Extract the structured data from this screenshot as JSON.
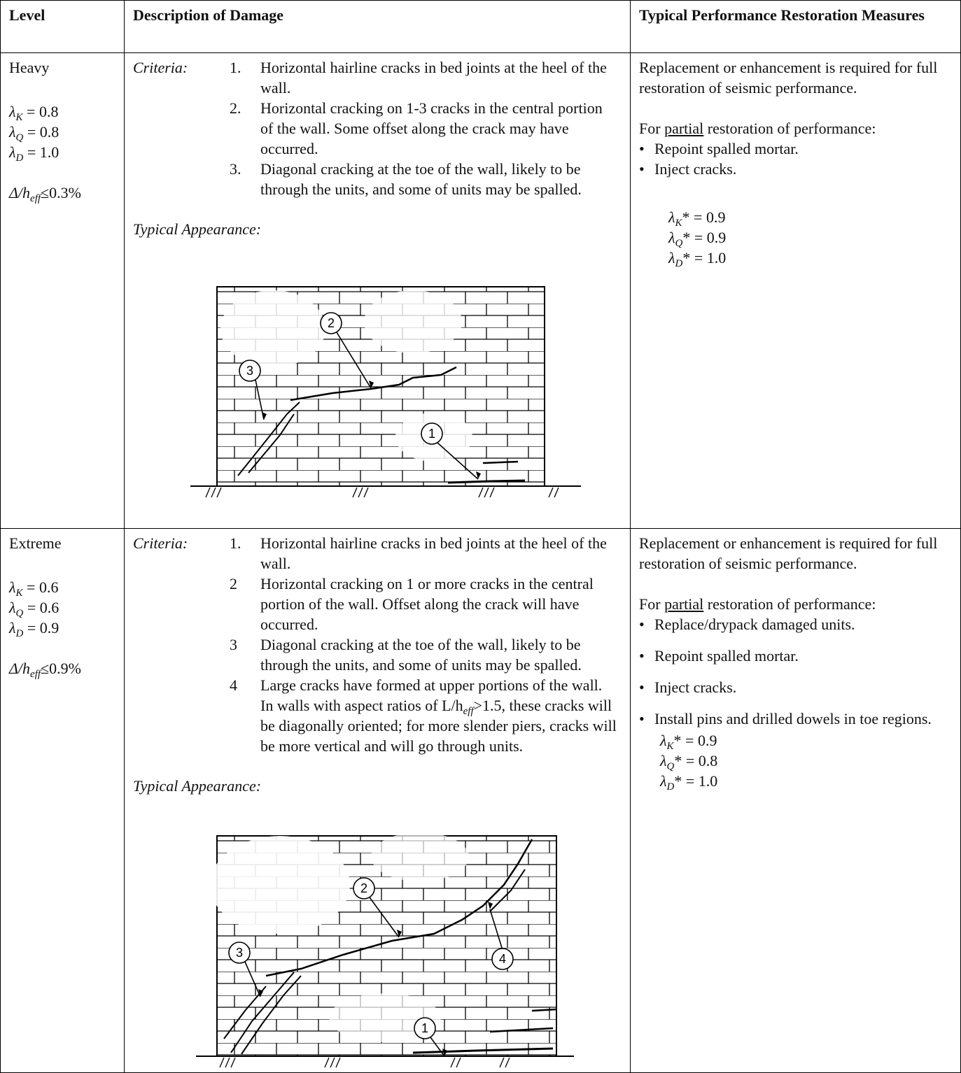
{
  "table": {
    "headers": [
      "Level",
      "Description of Damage",
      "Typical Performance Restoration Measures"
    ],
    "rows": [
      {
        "level": "Heavy",
        "factors": [
          [
            "λ",
            {
              "sub": "K"
            },
            " = 0.8"
          ],
          [
            "λ",
            {
              "sub": "Q"
            },
            " = 0.8"
          ],
          [
            "λ",
            {
              "sub": "D"
            },
            " = 1.0"
          ]
        ],
        "drift": [
          "Δ/h",
          {
            "sub": "eff"
          },
          "≤0.3%"
        ],
        "criteria_label": "Criteria:",
        "criteria": [
          {
            "num": "1.",
            "text": "Horizontal hairline cracks in bed joints at the heel of the wall."
          },
          {
            "num": "2.",
            "text": "Horizontal cracking on 1-3 cracks in the central portion of the wall. Some offset along the crack may have occurred."
          },
          {
            "num": "3.",
            "text": "Diagonal cracking at the toe of the wall, likely to be through the units, and some of units may be spalled."
          }
        ],
        "appearance_label": "Typical Appearance:",
        "callouts": [
          "1",
          "2",
          "3"
        ],
        "restoration": {
          "full": "Replacement or enhancement is required for full restoration of seismic performance.",
          "partial": [
            "For ",
            {
              "underline": "partial"
            },
            " restoration of performance:"
          ],
          "measures": [
            "Repoint spalled mortar.",
            "Inject cracks."
          ],
          "factors": [
            [
              "λ",
              {
                "sub": "K"
              },
              "* = 0.9"
            ],
            [
              "λ",
              {
                "sub": "Q"
              },
              "* = 0.9"
            ],
            [
              "λ",
              {
                "sub": "D"
              },
              "* = 1.0"
            ]
          ]
        }
      },
      {
        "level": "Extreme",
        "factors": [
          [
            "λ",
            {
              "sub": "K"
            },
            " = 0.6"
          ],
          [
            "λ",
            {
              "sub": "Q"
            },
            " = 0.6"
          ],
          [
            "λ",
            {
              "sub": "D"
            },
            " = 0.9"
          ]
        ],
        "drift": [
          "Δ/h",
          {
            "sub": "eff"
          },
          "≤0.9%"
        ],
        "criteria_label": "Criteria:",
        "criteria": [
          {
            "num": "1.",
            "text": "Horizontal hairline cracks in bed joints at the heel of the wall."
          },
          {
            "num": "2",
            "text": "Horizontal cracking on 1 or more cracks in the central portion of the wall. Offset along the crack will have occurred."
          },
          {
            "num": "3",
            "text": "Diagonal cracking at the toe of the wall, likely to be through the units, and some of units may be spalled."
          },
          {
            "num": "4",
            "text": [
              "Large cracks have formed at upper portions of the wall. In walls with aspect ratios of ",
              "L/h",
              {
                "sub": "eff"
              },
              ">1.5, these cracks will be diagonally oriented; for more slender piers, cracks will be more vertical and will go through units."
            ]
          }
        ],
        "appearance_label": "Typical Appearance:",
        "callouts": [
          "1",
          "2",
          "3",
          "4"
        ],
        "restoration": {
          "full": "Replacement or enhancement is required for full restoration of seismic performance.",
          "partial": [
            "For ",
            {
              "underline": "partial"
            },
            " restoration of performance:"
          ],
          "measures": [
            "Replace/drypack damaged units.",
            "Repoint spalled mortar.",
            "Inject cracks.",
            "Install pins and drilled dowels in toe regions."
          ],
          "factors": [
            [
              "λ",
              {
                "sub": "K"
              },
              "* = 0.9"
            ],
            [
              "λ",
              {
                "sub": "Q"
              },
              "* = 0.8"
            ],
            [
              "λ",
              {
                "sub": "D"
              },
              "* = 1.0"
            ]
          ]
        }
      }
    ]
  }
}
